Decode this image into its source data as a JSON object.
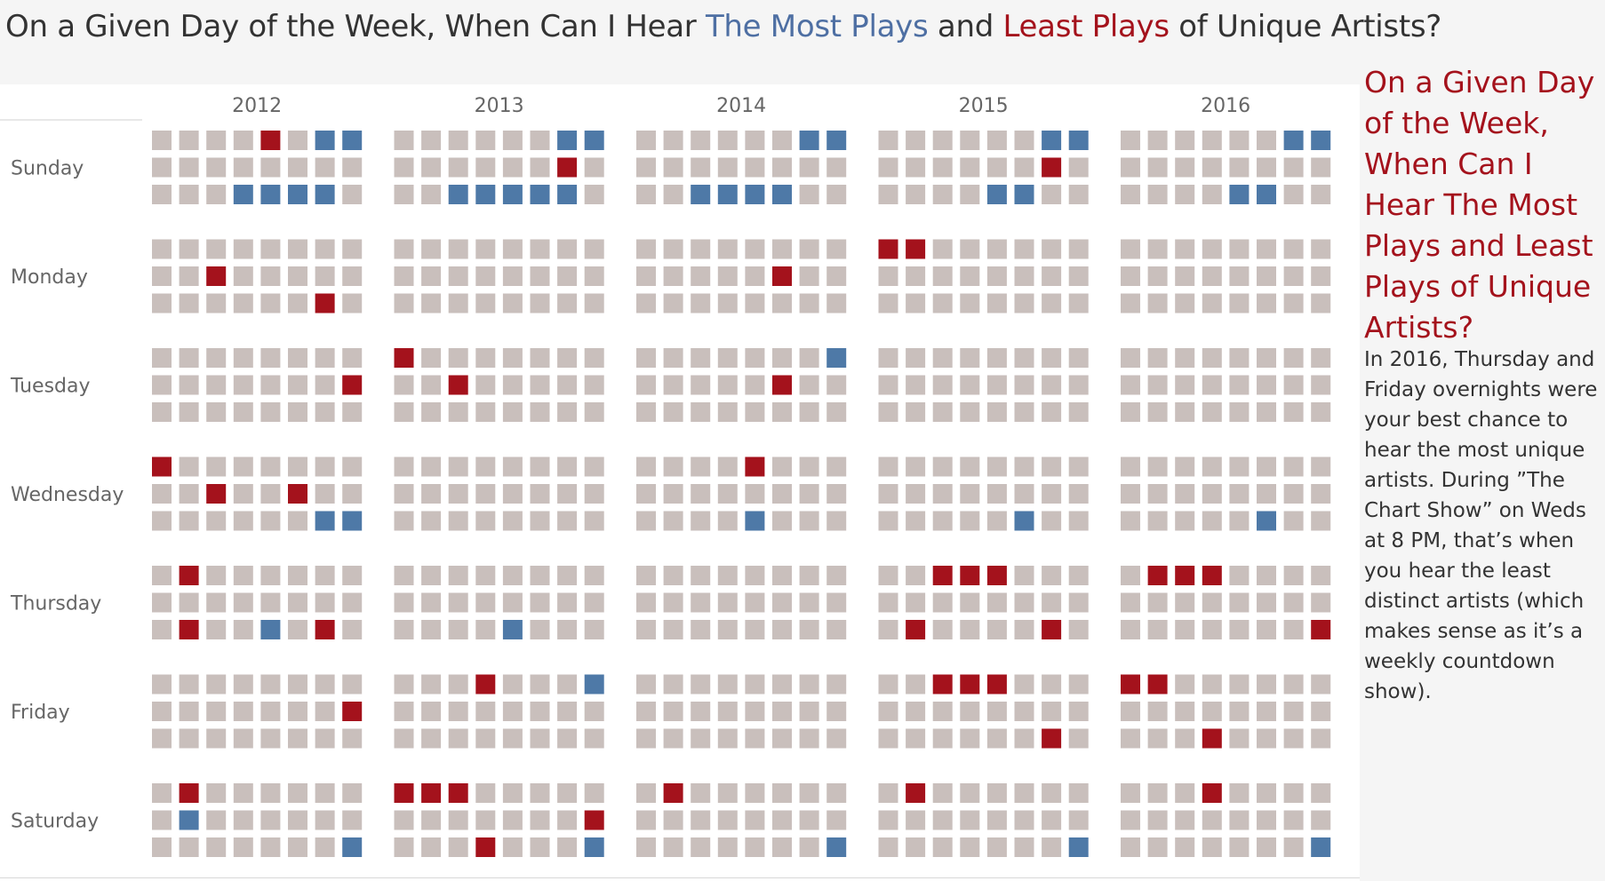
{
  "title": {
    "prefix": "On a Given Day of the Week, When Can I Hear ",
    "most": "The Most Plays",
    "middle": " and ",
    "least": "Least Plays",
    "suffix": " of Unique Artists?"
  },
  "sidebar": {
    "title": "On a Given Day of the Week, When Can I Hear The Most Plays and Least Plays of Unique Artists?",
    "body": "In 2016, Thursday and Friday overnights were your best chance to hear the most unique artists. During ”The Chart Show” on Weds at 8 PM, that’s when you hear the least distinct artists (which makes sense as it’s a weekly countdown show)."
  },
  "colors": {
    "neutral": "#c9bfbc",
    "most": "#a4121c",
    "least": "#4e79a7",
    "title_text": "#333333",
    "axis_label": "#666666"
  },
  "chart_data": {
    "type": "heatmap",
    "years": [
      "2012",
      "2013",
      "2014",
      "2015",
      "2016"
    ],
    "days": [
      "Sunday",
      "Monday",
      "Tuesday",
      "Wednesday",
      "Thursday",
      "Friday",
      "Saturday"
    ],
    "rows_per_day": 3,
    "cols_per_year": 8,
    "legend": {
      "M": "The Most Plays",
      "L": "Least Plays",
      ".": "neutral"
    },
    "grids": {
      "Sunday": {
        "2012": [
          "....M.LL",
          "........",
          "...LLLL."
        ],
        "2013": [
          "......LL",
          "......M.",
          "..LLLLL."
        ],
        "2014": [
          "......LL",
          "........",
          "..LLLL.."
        ],
        "2015": [
          "......LL",
          "......M.",
          "....LL.."
        ],
        "2016": [
          "......LL",
          "........",
          "....LL.."
        ]
      },
      "Monday": {
        "2012": [
          "........",
          "..M.....",
          "......M."
        ],
        "2013": [
          "........",
          "........",
          "........"
        ],
        "2014": [
          "........",
          ".....M..",
          "........"
        ],
        "2015": [
          "MM......",
          "........",
          "........"
        ],
        "2016": [
          "........",
          "........",
          "........"
        ]
      },
      "Tuesday": {
        "2012": [
          "........",
          ".......M",
          "........"
        ],
        "2013": [
          "M.......",
          "..M.....",
          "........"
        ],
        "2014": [
          ".......L",
          ".....M..",
          "........"
        ],
        "2015": [
          "........",
          "........",
          "........"
        ],
        "2016": [
          "........",
          "........",
          "........"
        ]
      },
      "Wednesday": {
        "2012": [
          "M.......",
          "..M..M..",
          "......LL"
        ],
        "2013": [
          "........",
          "........",
          "........"
        ],
        "2014": [
          "....M...",
          "........",
          "....L..."
        ],
        "2015": [
          "........",
          "........",
          ".....L.."
        ],
        "2016": [
          "........",
          "........",
          ".....L.."
        ]
      },
      "Thursday": {
        "2012": [
          ".M......",
          "........",
          ".M..L.M."
        ],
        "2013": [
          "........",
          "........",
          "....L..."
        ],
        "2014": [
          "........",
          "........",
          "........"
        ],
        "2015": [
          "..MMM...",
          "........",
          ".M....M."
        ],
        "2016": [
          ".MMM....",
          "........",
          ".......M"
        ]
      },
      "Friday": {
        "2012": [
          "........",
          ".......M",
          "........"
        ],
        "2013": [
          "...M...L",
          "........",
          "........"
        ],
        "2014": [
          "........",
          "........",
          "........"
        ],
        "2015": [
          "..MMM...",
          "........",
          "......M."
        ],
        "2016": [
          "MM......",
          "........",
          "...M...."
        ]
      },
      "Saturday": {
        "2012": [
          ".M......",
          ".L......",
          ".......L"
        ],
        "2013": [
          "MMM.....",
          ".......M",
          "...M...L"
        ],
        "2014": [
          ".M......",
          "........",
          ".......L"
        ],
        "2015": [
          ".M......",
          "........",
          ".......L"
        ],
        "2016": [
          "...M....",
          "........",
          ".......L"
        ]
      }
    }
  }
}
